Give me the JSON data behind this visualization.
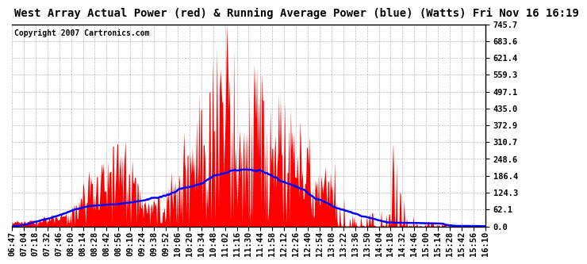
{
  "title": "West Array Actual Power (red) & Running Average Power (blue) (Watts) Fri Nov 16 16:19",
  "copyright": "Copyright 2007 Cartronics.com",
  "ylabel_right": [
    "745.7",
    "683.6",
    "621.4",
    "559.3",
    "497.1",
    "435.0",
    "372.9",
    "310.7",
    "248.6",
    "186.4",
    "124.3",
    "62.1",
    "0.0"
  ],
  "ymax": 745.7,
  "ymin": 0.0,
  "ytick_values": [
    745.7,
    683.6,
    621.4,
    559.3,
    497.1,
    435.0,
    372.9,
    310.7,
    248.6,
    186.4,
    124.3,
    62.1,
    0.0
  ],
  "xtick_labels": [
    "06:47",
    "07:04",
    "07:18",
    "07:32",
    "07:46",
    "08:00",
    "08:14",
    "08:28",
    "08:42",
    "08:56",
    "09:10",
    "09:24",
    "09:38",
    "09:52",
    "10:06",
    "10:20",
    "10:34",
    "10:48",
    "11:02",
    "11:16",
    "11:30",
    "11:44",
    "11:58",
    "12:12",
    "12:26",
    "12:40",
    "12:54",
    "13:08",
    "13:22",
    "13:36",
    "13:50",
    "14:04",
    "14:18",
    "14:32",
    "14:46",
    "15:00",
    "15:14",
    "15:28",
    "15:42",
    "15:56",
    "16:10"
  ],
  "actual_color": "#FF0000",
  "average_color": "#0000FF",
  "background_color": "#FFFFFF",
  "grid_color": "#AAAAAA",
  "title_fontsize": 10,
  "copyright_fontsize": 7,
  "tick_fontsize": 7.5
}
